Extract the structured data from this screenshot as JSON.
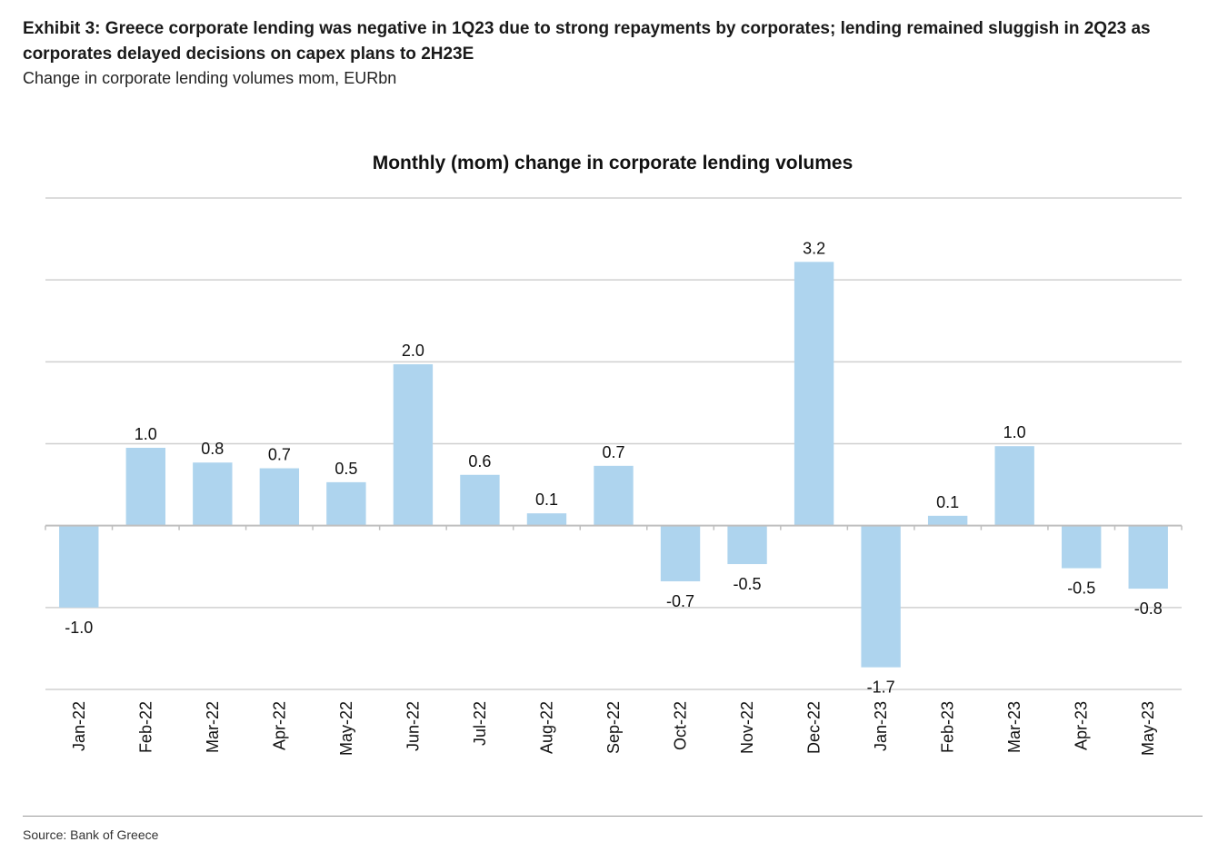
{
  "exhibit": {
    "title": "Exhibit 3: Greece corporate lending was negative in 1Q23 due to strong repayments by corporates; lending remained sluggish in 2Q23 as corporates delayed decisions on capex plans to 2H23E",
    "subtitle": "Change in corporate lending volumes mom, EURbn"
  },
  "source": "Source: Bank of Greece",
  "colors": {
    "bar": "#aed4ee",
    "grid": "#d0d0d0",
    "axis": "#bfbfbf"
  },
  "chart_data": {
    "type": "bar",
    "title": "Monthly (mom) change in corporate lending volumes",
    "xlabel": "",
    "ylabel": "",
    "ylim": [
      -2,
      4
    ],
    "grid": true,
    "categories": [
      "Jan-22",
      "Feb-22",
      "Mar-22",
      "Apr-22",
      "May-22",
      "Jun-22",
      "Jul-22",
      "Aug-22",
      "Sep-22",
      "Oct-22",
      "Nov-22",
      "Dec-22",
      "Jan-23",
      "Feb-23",
      "Mar-23",
      "Apr-23",
      "May-23"
    ],
    "values": [
      -1.0,
      0.95,
      0.77,
      0.7,
      0.53,
      1.97,
      0.62,
      0.15,
      0.73,
      -0.68,
      -0.47,
      3.22,
      -1.73,
      0.12,
      0.97,
      -0.52,
      -0.77
    ],
    "data_labels": [
      "-1.0",
      "1.0",
      "0.8",
      "0.7",
      "0.5",
      "2.0",
      "0.6",
      "0.1",
      "0.7",
      "-0.7",
      "-0.5",
      "3.2",
      "-1.7",
      "0.1",
      "1.0",
      "-0.5",
      "-0.8"
    ]
  }
}
